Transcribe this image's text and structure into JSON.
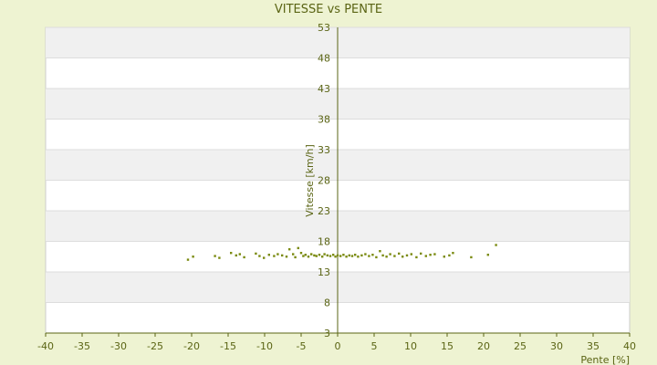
{
  "chart_data": {
    "type": "scatter",
    "title": "VITESSE vs PENTE",
    "xlabel": "Pente [%]",
    "ylabel": "Vitesse [km/h]",
    "xlim": [
      -40,
      40
    ],
    "ylim": [
      3,
      53
    ],
    "xticks": [
      -40,
      -35,
      -30,
      -25,
      -20,
      -15,
      -10,
      -5,
      0,
      5,
      10,
      15,
      20,
      25,
      30,
      35,
      40
    ],
    "yticks": [
      3,
      8,
      13,
      18,
      23,
      28,
      33,
      38,
      43,
      48,
      53
    ],
    "grid": true,
    "legend": "none",
    "colors": {
      "page_bg": "#eef3d2",
      "plot_bg": "#ffffff",
      "band": "#f0f0f0",
      "axis": "#5a6414",
      "marker": "#7a8a10"
    },
    "series": [
      {
        "points": [
          [
            -20.5,
            15.0
          ],
          [
            -19.8,
            15.5
          ],
          [
            -16.8,
            15.6
          ],
          [
            -16.2,
            15.3
          ],
          [
            -14.6,
            16.1
          ],
          [
            -13.9,
            15.7
          ],
          [
            -13.4,
            15.9
          ],
          [
            -12.8,
            15.4
          ],
          [
            -11.2,
            16.0
          ],
          [
            -10.7,
            15.6
          ],
          [
            -10.1,
            15.3
          ],
          [
            -9.4,
            15.8
          ],
          [
            -8.7,
            15.6
          ],
          [
            -8.2,
            15.9
          ],
          [
            -7.6,
            15.7
          ],
          [
            -7.0,
            15.5
          ],
          [
            -6.6,
            16.7
          ],
          [
            -6.1,
            15.9
          ],
          [
            -5.8,
            15.4
          ],
          [
            -5.4,
            16.9
          ],
          [
            -5.0,
            16.1
          ],
          [
            -4.7,
            15.6
          ],
          [
            -4.4,
            15.8
          ],
          [
            -4.0,
            15.5
          ],
          [
            -3.6,
            15.9
          ],
          [
            -3.2,
            15.7
          ],
          [
            -2.9,
            15.6
          ],
          [
            -2.5,
            15.8
          ],
          [
            -2.1,
            15.5
          ],
          [
            -1.8,
            15.9
          ],
          [
            -1.4,
            15.7
          ],
          [
            -1.0,
            15.6
          ],
          [
            -0.6,
            15.8
          ],
          [
            -0.3,
            15.5
          ],
          [
            0.0,
            15.7
          ],
          [
            0.4,
            15.6
          ],
          [
            0.8,
            15.8
          ],
          [
            1.2,
            15.5
          ],
          [
            1.6,
            15.7
          ],
          [
            2.0,
            15.6
          ],
          [
            2.4,
            15.8
          ],
          [
            2.8,
            15.5
          ],
          [
            3.3,
            15.7
          ],
          [
            3.8,
            15.9
          ],
          [
            4.3,
            15.6
          ],
          [
            4.8,
            15.8
          ],
          [
            5.3,
            15.4
          ],
          [
            5.8,
            16.4
          ],
          [
            6.2,
            15.7
          ],
          [
            6.7,
            15.5
          ],
          [
            7.2,
            15.9
          ],
          [
            7.8,
            15.6
          ],
          [
            8.4,
            16.0
          ],
          [
            8.9,
            15.5
          ],
          [
            9.5,
            15.7
          ],
          [
            10.1,
            15.9
          ],
          [
            10.8,
            15.4
          ],
          [
            11.4,
            16.0
          ],
          [
            12.1,
            15.6
          ],
          [
            12.7,
            15.8
          ],
          [
            13.3,
            15.9
          ],
          [
            14.6,
            15.5
          ],
          [
            15.3,
            15.7
          ],
          [
            15.8,
            16.1
          ],
          [
            18.3,
            15.4
          ],
          [
            20.6,
            15.8
          ],
          [
            21.7,
            17.4
          ]
        ]
      }
    ]
  }
}
